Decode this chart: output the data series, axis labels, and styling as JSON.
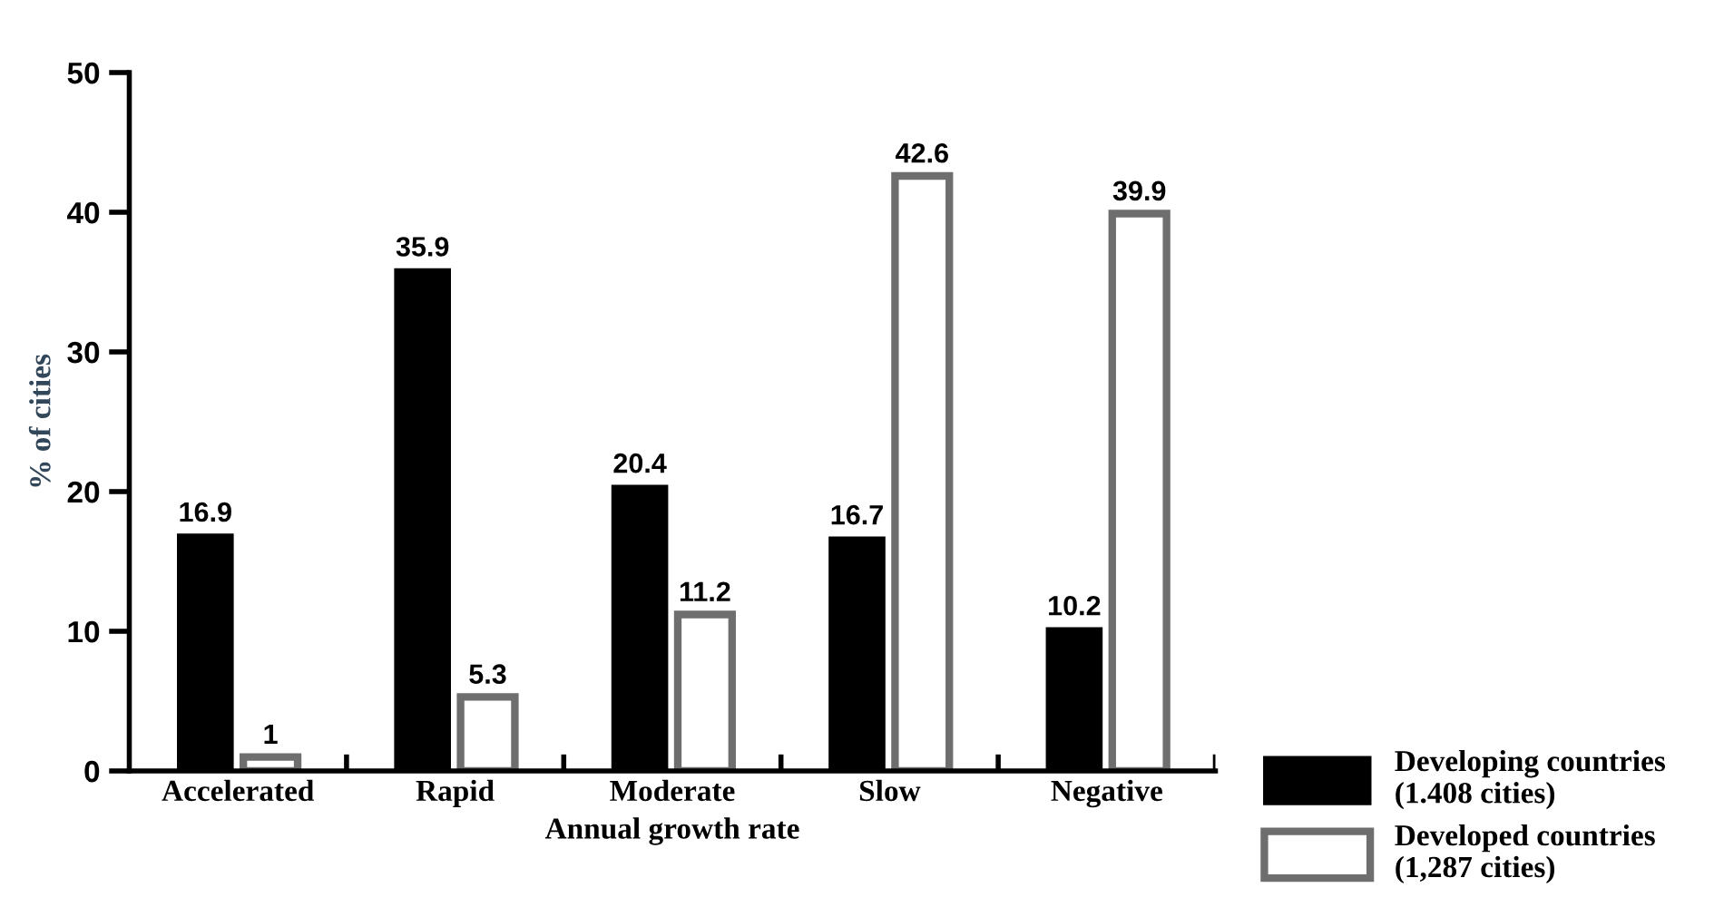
{
  "chart_data": {
    "type": "bar",
    "xlabel": "Annual growth rate",
    "ylabel": "% of cities",
    "categories": [
      "Accelerated",
      "Rapid",
      "Moderate",
      "Slow",
      "Negative"
    ],
    "series": [
      {
        "name": "Developing countries\n(1.408 cities)",
        "color": "#000000",
        "values": [
          16.9,
          35.9,
          20.4,
          16.7,
          10.2
        ]
      },
      {
        "name": "Developed countries\n(1,287 cities)",
        "color": "#6e6e6e",
        "values": [
          1,
          5.3,
          11.2,
          42.6,
          39.9
        ]
      }
    ],
    "ylim": [
      0,
      50
    ],
    "yticks": [
      0,
      10,
      20,
      30,
      40,
      50
    ],
    "grid": false,
    "legend": "bottom right",
    "data_labels": true
  }
}
